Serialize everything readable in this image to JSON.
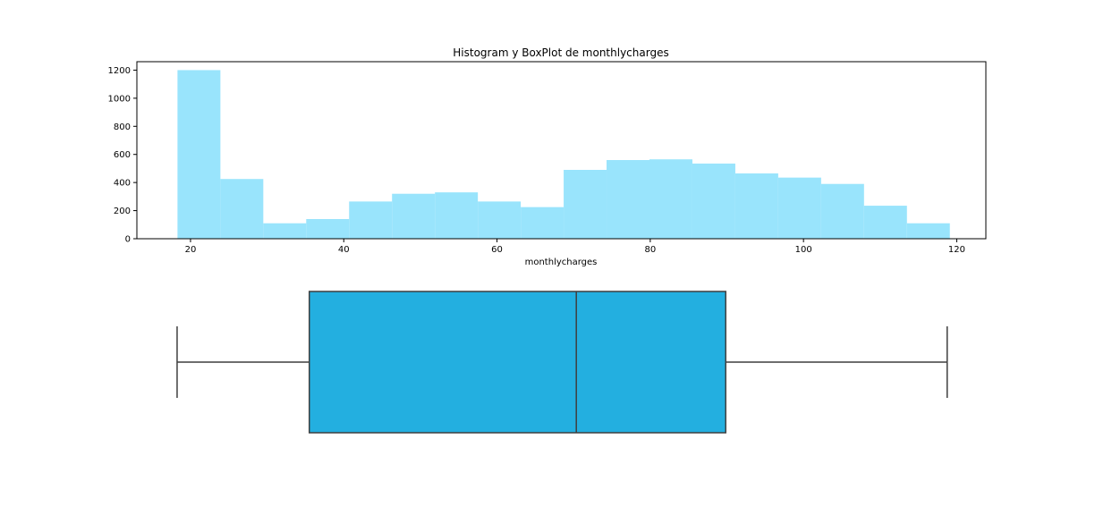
{
  "chart_data": [
    {
      "type": "histogram",
      "title": "Histogram y BoxPlot de monthlycharges",
      "xlabel": "monthlycharges",
      "ylabel": "",
      "xlim": [
        13.0,
        123.8
      ],
      "ylim": [
        0,
        1260
      ],
      "xticks": [
        20,
        40,
        60,
        80,
        100,
        120
      ],
      "yticks": [
        0,
        200,
        400,
        600,
        800,
        1000,
        1200
      ],
      "bin_width": 5.6,
      "bins": [
        {
          "x0": 18.3,
          "x1": 23.9,
          "count": 1200
        },
        {
          "x0": 23.9,
          "x1": 29.5,
          "count": 425
        },
        {
          "x0": 29.5,
          "x1": 35.1,
          "count": 110
        },
        {
          "x0": 35.1,
          "x1": 40.7,
          "count": 140
        },
        {
          "x0": 40.7,
          "x1": 46.3,
          "count": 265
        },
        {
          "x0": 46.3,
          "x1": 51.9,
          "count": 320
        },
        {
          "x0": 51.9,
          "x1": 57.5,
          "count": 330
        },
        {
          "x0": 57.5,
          "x1": 63.1,
          "count": 265
        },
        {
          "x0": 63.1,
          "x1": 68.7,
          "count": 225
        },
        {
          "x0": 68.7,
          "x1": 74.3,
          "count": 490
        },
        {
          "x0": 74.3,
          "x1": 79.9,
          "count": 560
        },
        {
          "x0": 79.9,
          "x1": 85.5,
          "count": 565
        },
        {
          "x0": 85.5,
          "x1": 91.1,
          "count": 535
        },
        {
          "x0": 91.1,
          "x1": 96.7,
          "count": 465
        },
        {
          "x0": 96.7,
          "x1": 102.3,
          "count": 435
        },
        {
          "x0": 102.3,
          "x1": 107.9,
          "count": 390
        },
        {
          "x0": 107.9,
          "x1": 113.5,
          "count": 235
        },
        {
          "x0": 113.5,
          "x1": 119.1,
          "count": 110
        }
      ],
      "color": "#99e4fc",
      "grid": false
    },
    {
      "type": "boxplot",
      "xlim": [
        13.0,
        123.8
      ],
      "whisker_low": 18.25,
      "q1": 35.5,
      "median": 70.35,
      "q3": 89.85,
      "whisker_high": 118.75,
      "color": "#23afe0",
      "edge_color": "#3f3f3f"
    }
  ]
}
